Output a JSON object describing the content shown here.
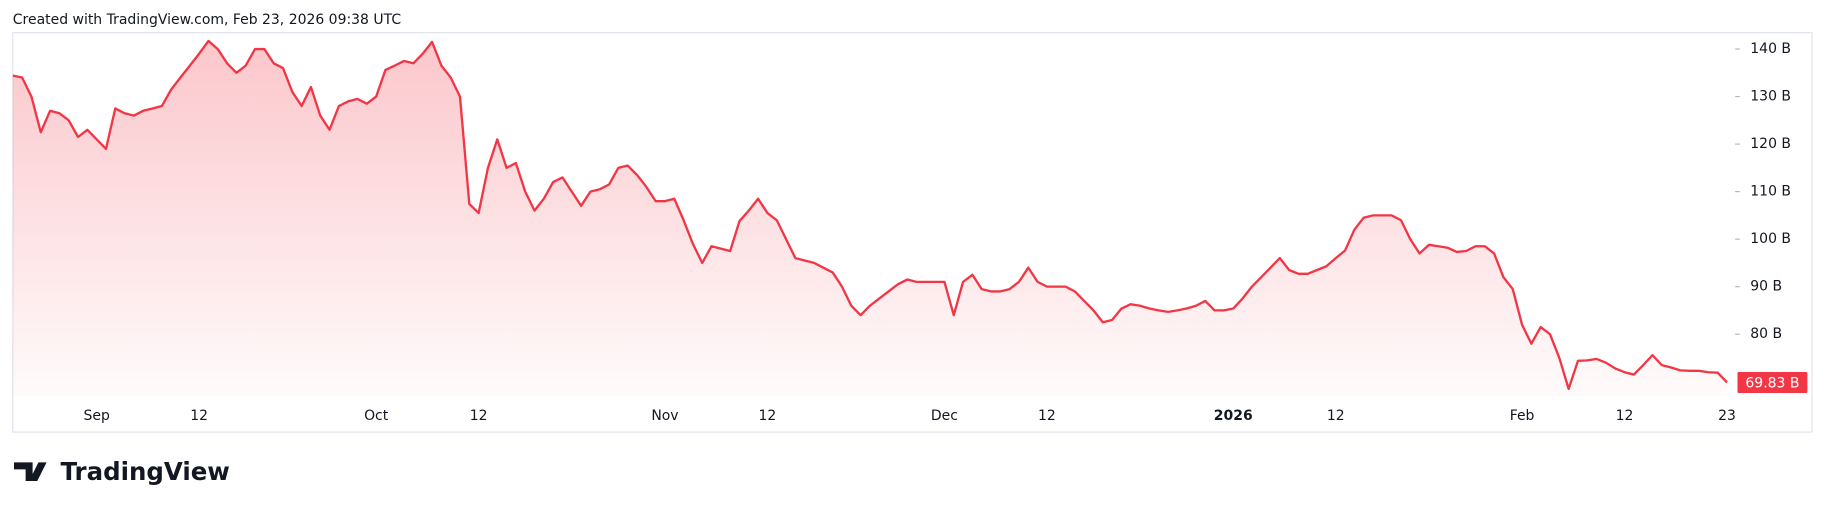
{
  "header": {
    "created": "Created with TradingView.com, Feb 23, 2026 09:38 UTC"
  },
  "brand": "TradingView",
  "chart_data": {
    "type": "area",
    "color": "#f23645",
    "grid": false,
    "ylim": [
      67,
      143.2
    ],
    "yticks": [
      {
        "value": 80,
        "label": "80 B"
      },
      {
        "value": 90,
        "label": "90 B"
      },
      {
        "value": 100,
        "label": "100 B"
      },
      {
        "value": 110,
        "label": "110 B"
      },
      {
        "value": 120,
        "label": "120 B"
      },
      {
        "value": 130,
        "label": "130 B"
      },
      {
        "value": 140,
        "label": "140 B"
      }
    ],
    "last_label": "69.83 B",
    "categories": [
      null,
      null,
      null,
      null,
      null,
      null,
      null,
      null,
      null,
      "Sep",
      null,
      null,
      null,
      null,
      null,
      null,
      null,
      null,
      null,
      null,
      "12",
      null,
      null,
      null,
      null,
      null,
      null,
      null,
      null,
      null,
      null,
      null,
      null,
      null,
      null,
      null,
      null,
      null,
      null,
      "Oct",
      null,
      null,
      null,
      null,
      null,
      null,
      null,
      null,
      null,
      null,
      "12",
      null,
      null,
      null,
      null,
      null,
      null,
      null,
      null,
      null,
      null,
      null,
      null,
      null,
      null,
      null,
      null,
      null,
      null,
      null,
      "Nov",
      null,
      null,
      null,
      null,
      null,
      null,
      null,
      null,
      null,
      null,
      "12",
      null,
      null,
      null,
      null,
      null,
      null,
      null,
      null,
      null,
      null,
      null,
      null,
      null,
      null,
      null,
      null,
      null,
      null,
      "Dec",
      null,
      null,
      null,
      null,
      null,
      null,
      null,
      null,
      null,
      null,
      "12",
      null,
      null,
      null,
      null,
      null,
      null,
      null,
      null,
      null,
      null,
      null,
      null,
      null,
      null,
      null,
      null,
      null,
      null,
      null,
      "2026",
      null,
      null,
      null,
      null,
      null,
      null,
      null,
      null,
      null,
      null,
      "12",
      null,
      null,
      null,
      null,
      null,
      null,
      null,
      null,
      null,
      null,
      null,
      null,
      null,
      null,
      null,
      null,
      null,
      null,
      null,
      "Feb",
      null,
      null,
      null,
      null,
      null,
      null,
      null,
      null,
      null,
      null,
      "12",
      null,
      null,
      null,
      null,
      null,
      null,
      null,
      null,
      null,
      null,
      "23"
    ],
    "values": [
      134.4,
      134,
      130,
      122.5,
      127,
      126.5,
      125,
      121.5,
      123,
      121,
      119,
      127.5,
      126.5,
      126,
      127,
      127.5,
      128,
      131.5,
      134,
      136.5,
      139,
      141.7,
      140,
      137,
      135,
      136.5,
      140,
      140,
      137,
      136,
      131,
      128,
      132,
      126,
      123,
      128,
      129,
      129.5,
      128.5,
      130,
      135.6,
      136.5,
      137.5,
      137,
      139,
      141.5,
      136.5,
      134,
      130,
      107.4,
      105.5,
      115,
      121,
      115,
      116,
      110,
      106,
      108.5,
      112,
      113,
      110,
      107,
      110,
      110.5,
      111.5,
      115,
      115.5,
      113.5,
      111,
      108,
      108,
      108.5,
      104,
      99,
      95,
      98.5,
      98,
      97.5,
      103.8,
      106,
      108.5,
      105.5,
      104,
      100,
      96,
      95.5,
      95,
      94,
      93,
      90,
      86,
      84,
      86,
      87.5,
      89,
      90.5,
      91.5,
      91,
      91,
      91,
      91,
      84,
      91,
      92.5,
      89.5,
      89,
      89,
      89.5,
      91,
      94,
      91,
      90,
      90,
      90,
      89,
      87,
      85,
      82.5,
      83,
      85.4,
      86.3,
      86,
      85.4,
      85,
      84.7,
      85,
      85.4,
      86,
      87,
      85,
      85,
      85.4,
      87.5,
      90,
      92,
      94,
      96,
      93.5,
      92.7,
      92.7,
      93.5,
      94.3,
      96,
      97.6,
      102,
      104.5,
      105,
      105,
      105,
      104,
      100,
      97,
      98.8,
      98.5,
      98.2,
      97.3,
      97.5,
      98.5,
      98.5,
      97,
      92,
      89.5,
      82,
      78,
      81.5,
      80,
      75,
      68.5,
      74.4,
      74.5,
      74.8,
      74,
      72.8,
      72,
      71.5,
      73.5,
      75.6,
      73.5,
      73,
      72.4,
      72.3,
      72.3,
      72,
      71.9,
      69.83
    ]
  }
}
